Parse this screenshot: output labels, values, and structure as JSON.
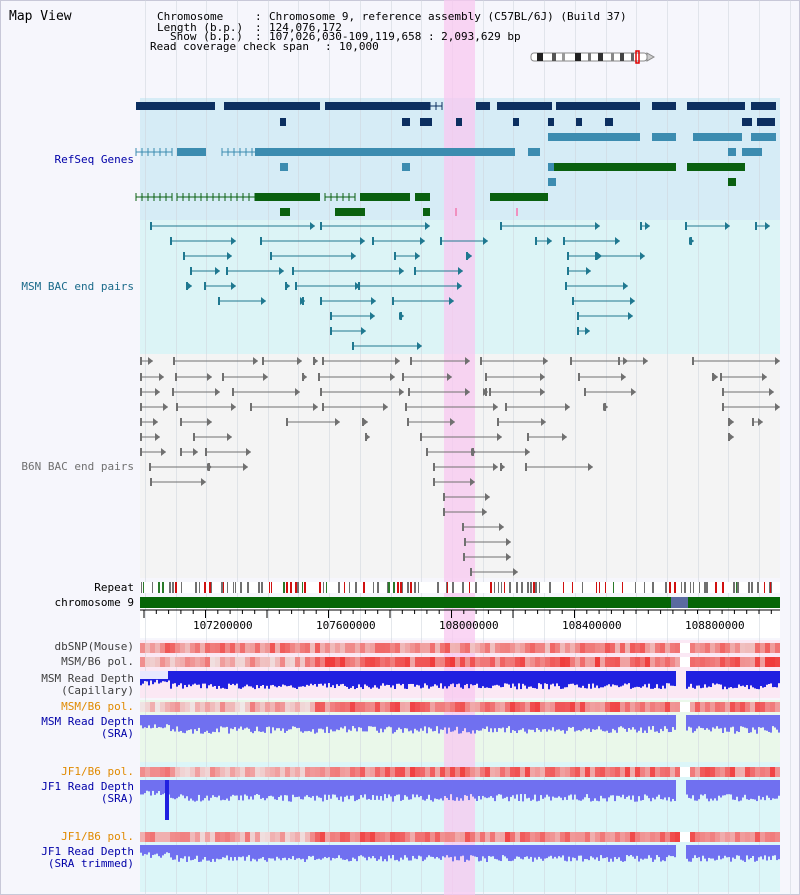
{
  "view_title": "Map View",
  "info": {
    "chromosome_label": "Chromosome",
    "chromosome_value": "Chromosome 9, reference assembly (C57BL/6J) (Build 37)",
    "length_label": "Length (b.p.)",
    "length_value": "124,076,172",
    "show_label": "Show (b.p.)",
    "show_value": "107,026,030-109,119,658 : 2,093,629 bp",
    "coverage_label": "Read coverage check span",
    "coverage_value": "10,000"
  },
  "tracks": {
    "refseq": "RefSeq Genes",
    "msm_bac": "MSM BAC end pairs",
    "b6n_bac": "B6N BAC end pairs",
    "repeat": "Repeat",
    "chromosome": "chromosome 9",
    "dbsnp": "dbSNP(Mouse)",
    "msm_pol1": "MSM/B6 pol.",
    "msm_depth_cap_1": "MSM Read Depth",
    "msm_depth_cap_2": "(Capillary)",
    "msm_pol2": "MSM/B6 pol.",
    "msm_depth_sra_1": "MSM Read Depth",
    "msm_depth_sra_2": "(SRA)",
    "jf1_pol1": "JF1/B6 pol.",
    "jf1_depth_sra_1": "JF1 Read Depth",
    "jf1_depth_sra_2": "(SRA)",
    "jf1_pol2": "JF1/B6 pol.",
    "jf1_depth_trim_1": "JF1 Read Depth",
    "jf1_depth_trim_2": "(SRA trimmed)"
  },
  "axis_ticks": [
    "107200000",
    "107600000",
    "108000000",
    "108400000",
    "108800000"
  ],
  "colors": {
    "refseq_dark": "#0c2f60",
    "refseq_mid": "#3c8cb0",
    "refseq_green": "#0a6010",
    "msm_bac": "#1f7890",
    "b6n_bac": "#707070",
    "chromosome": "#066606",
    "highlight": "#f8c8f0",
    "depth_blue": "#2020e0",
    "depth_light": "#7070f0",
    "label_blue": "#0000a8",
    "label_orange": "#e08a00",
    "label_teal": "#1a6a8a",
    "label_gray": "#707070"
  }
}
